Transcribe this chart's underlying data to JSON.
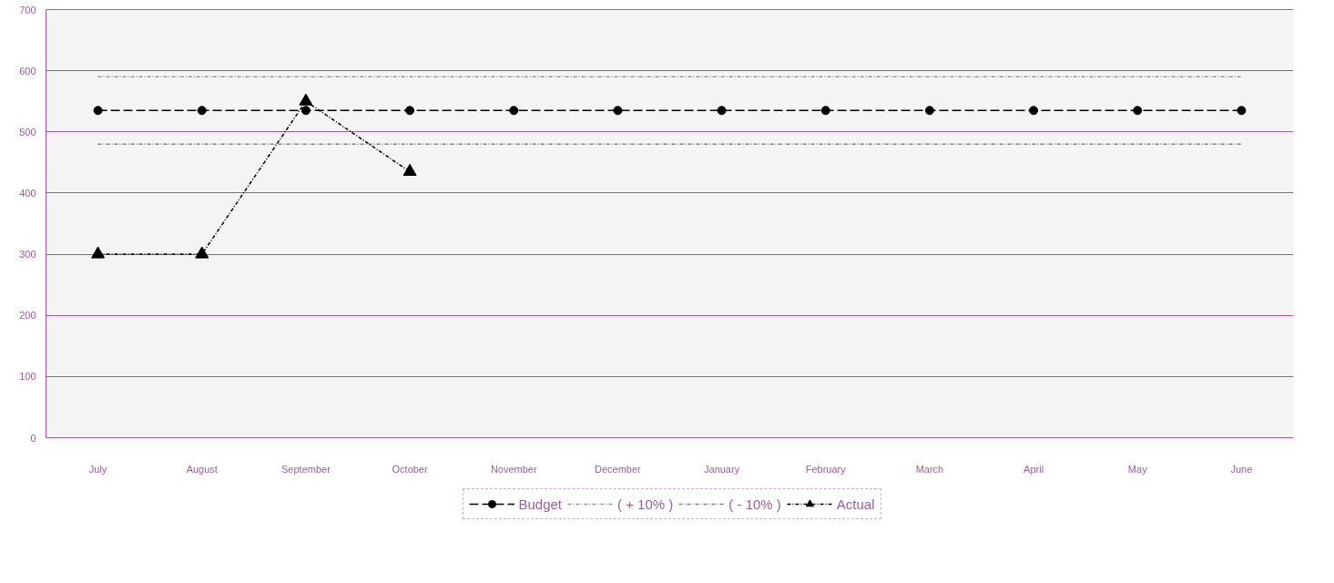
{
  "chart_data": {
    "type": "line",
    "categories": [
      "July",
      "August",
      "September",
      "October",
      "November",
      "December",
      "January",
      "February",
      "March",
      "April",
      "May",
      "June"
    ],
    "series": [
      {
        "name": "Budget",
        "color": "#000000",
        "marker": "circle",
        "line_style": "dashed",
        "values": [
          535,
          535,
          535,
          535,
          535,
          535,
          535,
          535,
          535,
          535,
          535,
          535
        ]
      },
      {
        "name": "( + 10% )",
        "color": "#999999",
        "marker": "none",
        "line_style": "dotted",
        "values": [
          590,
          590,
          590,
          590,
          590,
          590,
          590,
          590,
          590,
          590,
          590,
          590
        ]
      },
      {
        "name": "( - 10% )",
        "color": "#808080",
        "marker": "none",
        "line_style": "dotted",
        "values": [
          480,
          480,
          480,
          480,
          480,
          480,
          480,
          480,
          480,
          480,
          480,
          480
        ]
      },
      {
        "name": "Actual",
        "color": "#000000",
        "marker": "triangle",
        "line_style": "dotted",
        "values": [
          300,
          300,
          550,
          435,
          null,
          null,
          null,
          null,
          null,
          null,
          null,
          null
        ]
      }
    ],
    "ylim": [
      0,
      700
    ],
    "yticks": [
      0,
      100,
      200,
      300,
      400,
      500,
      600,
      700
    ],
    "grid": "y",
    "legend": "bottom"
  }
}
